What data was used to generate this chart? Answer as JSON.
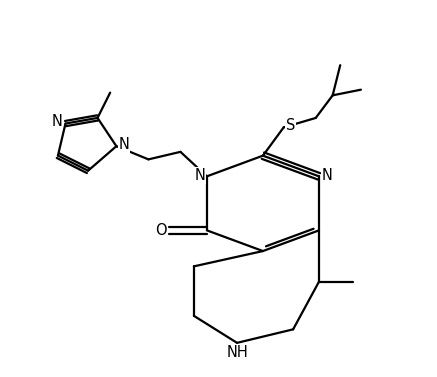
{
  "background": "#ffffff",
  "line_color": "#000000",
  "line_width": 1.6,
  "font_size": 10.5,
  "figsize": [
    4.37,
    3.77
  ],
  "dpi": 100,
  "xlim": [
    -0.5,
    10.5
  ],
  "ylim": [
    -0.5,
    9.5
  ]
}
